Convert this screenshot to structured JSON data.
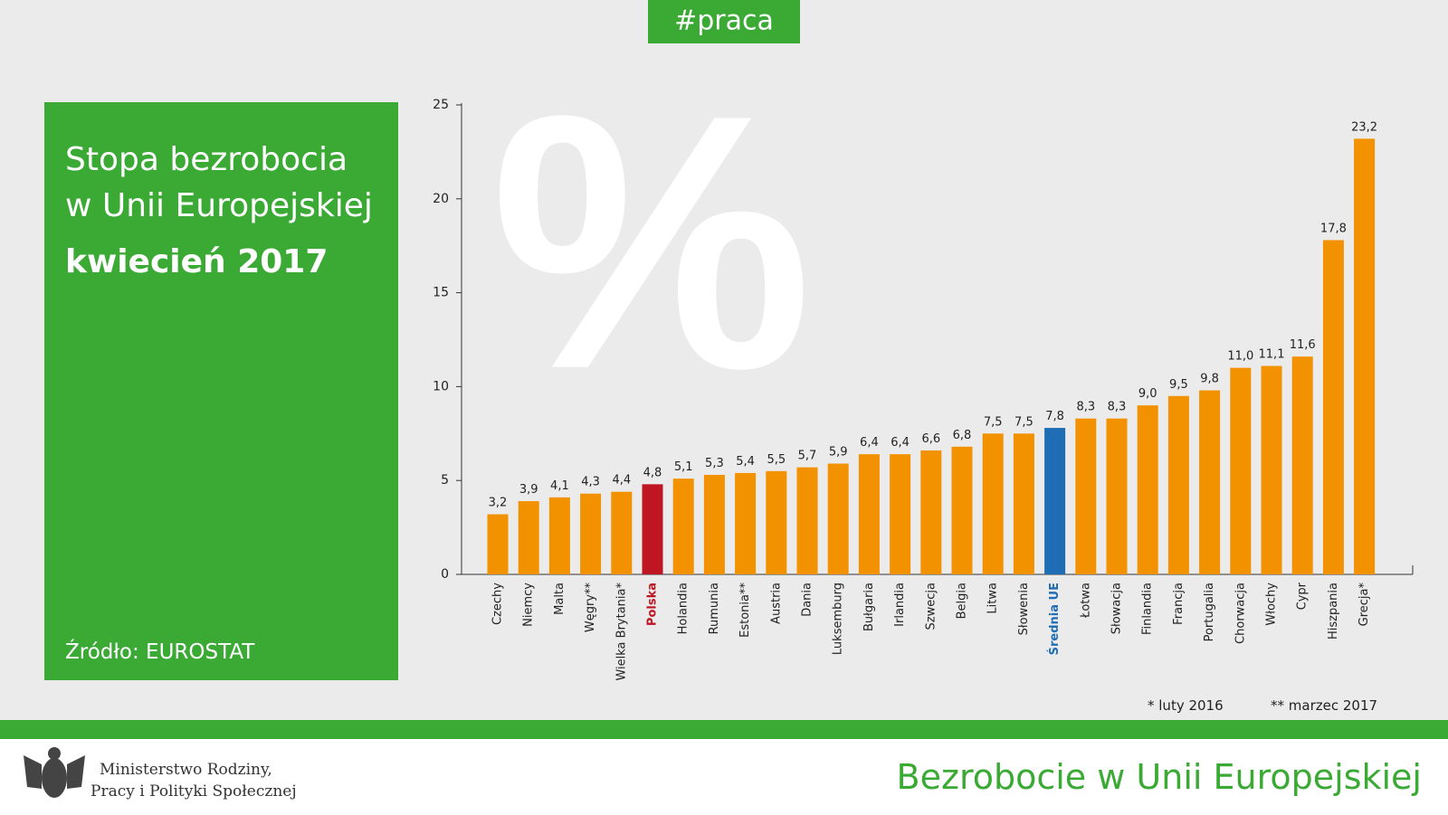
{
  "tag": "#praca",
  "panel": {
    "title_lines": [
      "Stopa bezrobocia",
      "w Unii Europejskiej"
    ],
    "date": "kwiecień 2017",
    "source": "Źródło: EUROSTAT"
  },
  "watermark": "%",
  "footnotes": [
    "* luty 2016",
    "** marzec 2017"
  ],
  "footer": {
    "ministry_lines": [
      "Ministerstwo Rodziny,",
      "Pracy i Polityki Społecznej"
    ],
    "title": "Bezrobocie w Unii Europejskiej"
  },
  "chart_data": {
    "type": "bar",
    "categories": [
      "Czechy",
      "Niemcy",
      "Malta",
      "Węgry**",
      "Wielka Brytania*",
      "Polska",
      "Holandia",
      "Rumunia",
      "Estonia**",
      "Austria",
      "Dania",
      "Luksemburg",
      "Bułgaria",
      "Irlandia",
      "Szwecja",
      "Belgia",
      "Litwa",
      "Słowenia",
      "Średnia UE",
      "Łotwa",
      "Słowacja",
      "Finlandia",
      "Francja",
      "Portugalia",
      "Chorwacja",
      "Włochy",
      "Cypr",
      "Hiszpania",
      "Grecja*"
    ],
    "values": [
      3.2,
      3.9,
      4.1,
      4.3,
      4.4,
      4.8,
      5.1,
      5.3,
      5.4,
      5.5,
      5.7,
      5.9,
      6.4,
      6.4,
      6.6,
      6.8,
      7.5,
      7.5,
      7.8,
      8.3,
      8.3,
      9.0,
      9.5,
      9.8,
      11.0,
      11.1,
      11.6,
      17.8,
      23.2
    ],
    "value_labels": [
      "3,2",
      "3,9",
      "4,1",
      "4,3",
      "4,4",
      "4,8",
      "5,1",
      "5,3",
      "5,4",
      "5,5",
      "5,7",
      "5,9",
      "6,4",
      "6,4",
      "6,6",
      "6,8",
      "7,5",
      "7,5",
      "7,8",
      "8,3",
      "8,3",
      "9,0",
      "9,5",
      "9,8",
      "11,0",
      "11,1",
      "11,6",
      "17,8",
      "23,2"
    ],
    "colors": [
      "#f39200",
      "#f39200",
      "#f39200",
      "#f39200",
      "#f39200",
      "#be1622",
      "#f39200",
      "#f39200",
      "#f39200",
      "#f39200",
      "#f39200",
      "#f39200",
      "#f39200",
      "#f39200",
      "#f39200",
      "#f39200",
      "#f39200",
      "#f39200",
      "#1f6db5",
      "#f39200",
      "#f39200",
      "#f39200",
      "#f39200",
      "#f39200",
      "#f39200",
      "#f39200",
      "#f39200",
      "#f39200",
      "#f39200"
    ],
    "ylim": [
      0,
      25
    ],
    "yticks": [
      0,
      5,
      10,
      15,
      20,
      25
    ]
  }
}
